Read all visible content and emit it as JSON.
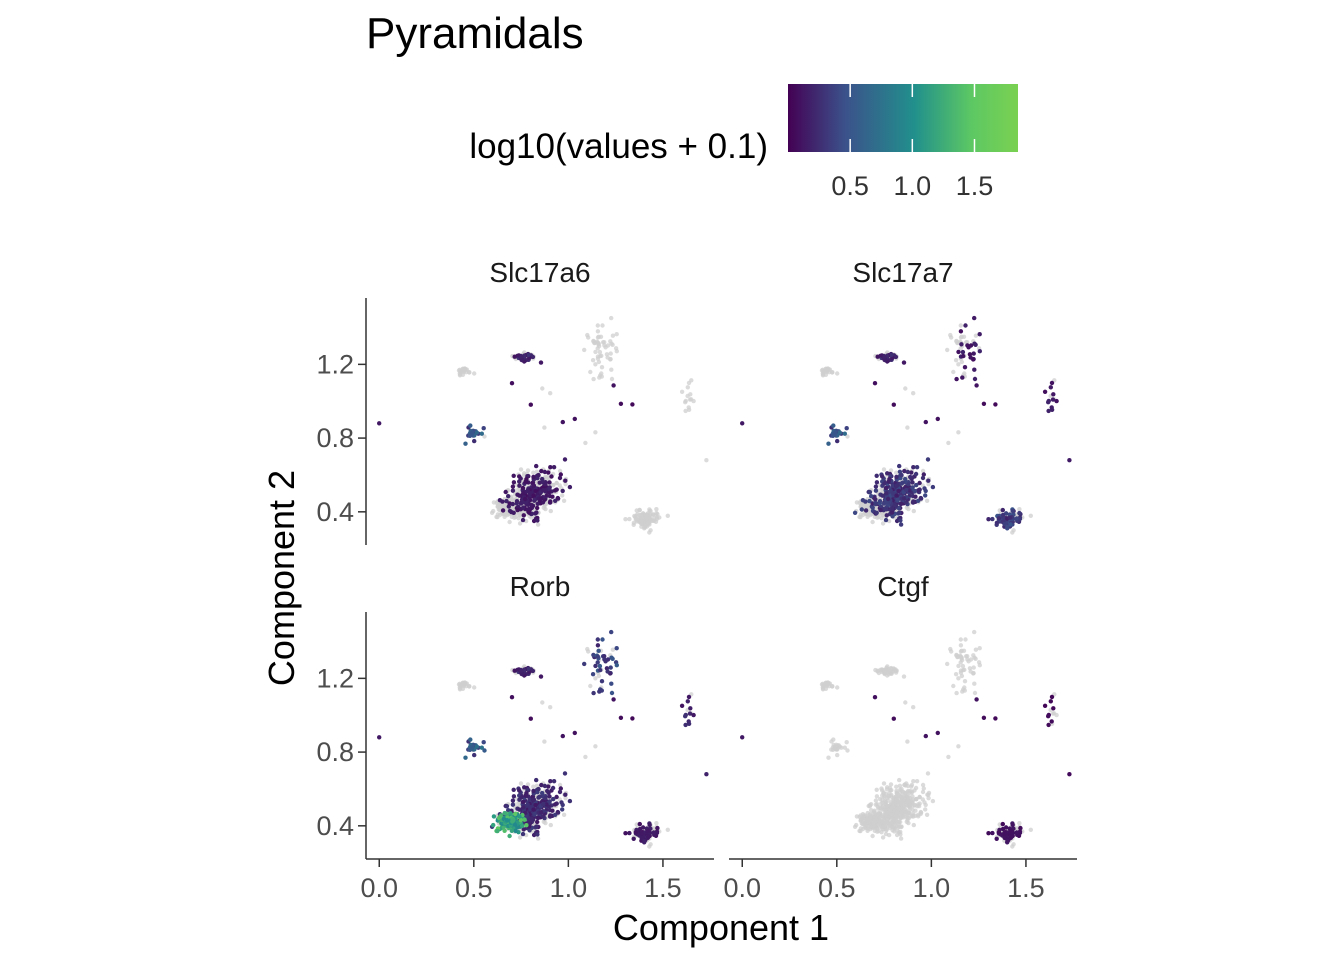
{
  "chart_data": {
    "type": "scatter",
    "title": "Pyramidals",
    "xlabel": "Component 1",
    "ylabel": "Component 2",
    "xlim": [
      -0.07,
      1.77
    ],
    "ylim": [
      0.22,
      1.56
    ],
    "x_ticks": [
      0.0,
      0.5,
      1.0,
      1.5
    ],
    "x_tick_labels": [
      "0.0",
      "0.5",
      "1.0",
      "1.5"
    ],
    "y_ticks": [
      0.4,
      0.8,
      1.2
    ],
    "y_tick_labels": [
      "0.4",
      "0.8",
      "1.2"
    ],
    "grid": false,
    "color_scale": {
      "title": "log10(values + 0.1)",
      "palette": "viridis",
      "colors": [
        "#440154",
        "#3b528b",
        "#21908c",
        "#5dc863",
        "#7ad151"
      ],
      "range": [
        0.0,
        1.85
      ],
      "breaks": [
        0.5,
        1.0,
        1.5
      ],
      "break_labels": [
        "0.5",
        "1.0",
        "1.5"
      ],
      "na_color": "#cfcfcf",
      "legend_placement": "top"
    },
    "panels": [
      {
        "name": "Slc17a6",
        "expression": {
          "upper_right": 0.0,
          "upper_left": 0.2,
          "main_body": 0.15,
          "left_wing": 0.0,
          "right_blob": 0.0,
          "tail": 0.0,
          "isolated": 0.1,
          "v_shape": 0.5
        }
      },
      {
        "name": "Slc17a7",
        "expression": {
          "upper_right": 0.15,
          "upper_left": 0.2,
          "main_body": 0.3,
          "left_wing": 0.0,
          "right_blob": 0.35,
          "tail": 0.15,
          "isolated": 0.1,
          "v_shape": 0.5
        }
      },
      {
        "name": "Rorb",
        "expression": {
          "upper_right": 0.4,
          "upper_left": 0.2,
          "main_body": 0.25,
          "left_wing": 1.25,
          "right_blob": 0.15,
          "tail": 0.2,
          "isolated": 0.1,
          "v_shape": 0.55
        }
      },
      {
        "name": "Ctgf",
        "expression": {
          "upper_right": 0.0,
          "upper_left": 0.0,
          "main_body": 0.0,
          "left_wing": 0.0,
          "right_blob": 0.1,
          "tail": 0.05,
          "isolated": 0.1,
          "v_shape": 0.0
        }
      }
    ],
    "clusters": [
      {
        "id": "main_body",
        "cx": 0.79,
        "cy": 0.43,
        "sx": 0.07,
        "sy": 0.07,
        "n": 420
      },
      {
        "id": "left_wing",
        "cx": 0.69,
        "cy": 0.42,
        "sx": 0.035,
        "sy": 0.025,
        "n": 130
      },
      {
        "id": "right_blob",
        "cx": 1.41,
        "cy": 0.36,
        "sx": 0.035,
        "sy": 0.025,
        "n": 110
      },
      {
        "id": "upper_left",
        "cx": 0.77,
        "cy": 1.24,
        "sx": 0.03,
        "sy": 0.012,
        "n": 45
      },
      {
        "id": "upper_far_left",
        "cx": 0.45,
        "cy": 1.16,
        "sx": 0.02,
        "sy": 0.01,
        "n": 22
      },
      {
        "id": "v_shape",
        "cx": 0.5,
        "cy": 0.82,
        "sx": 0.025,
        "sy": 0.015,
        "n": 25
      },
      {
        "id": "upper_right",
        "cx": 1.18,
        "cy": 1.28,
        "sx": 0.05,
        "sy": 0.08,
        "n": 55
      },
      {
        "id": "tail",
        "cx": 1.62,
        "cy": 1.02,
        "sx": 0.02,
        "sy": 0.05,
        "n": 14
      },
      {
        "id": "isolated",
        "cx": 1.0,
        "cy": 0.95,
        "sx": 0.35,
        "sy": 0.2,
        "n": 12
      }
    ]
  }
}
